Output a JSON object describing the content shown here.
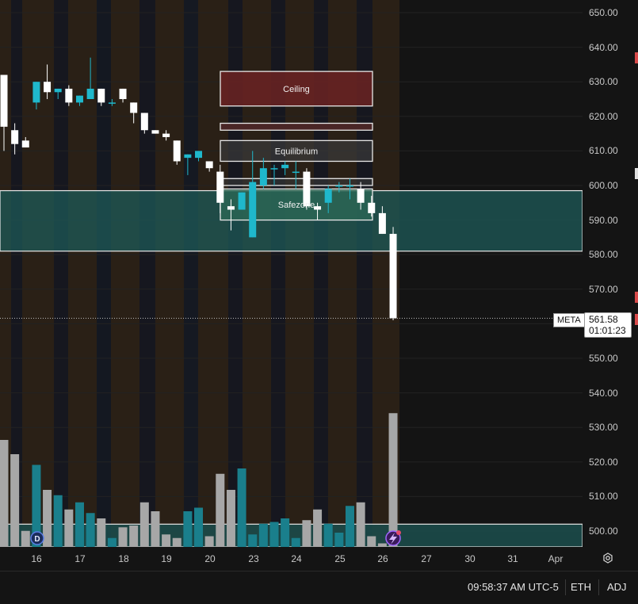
{
  "symbol": "META",
  "last_price": "561.58",
  "countdown": "01:01:23",
  "session_time": "09:58:37 AM UTC-5",
  "session": "ETH",
  "adjustment": "ADJ",
  "zones": {
    "ceiling": "Ceiling",
    "equilibrium": "Equilibrium",
    "safezone": "Safezone"
  },
  "badges": {
    "dividend": "D"
  },
  "colors": {
    "up": "#1fb8cc",
    "down": "#ffffff",
    "vol_up": "#1a7f8c",
    "vol_down": "#a7a7a7",
    "zone_teal": "#1d5a58",
    "ceiling": "#6b2323"
  },
  "chart_data": {
    "type": "candlestick",
    "price_axis": [
      "650.00",
      "640.00",
      "630.00",
      "620.00",
      "610.00",
      "600.00",
      "590.00",
      "580.00",
      "570.00",
      "560.00",
      "550.00",
      "540.00",
      "530.00",
      "520.00",
      "510.00",
      "500.00"
    ],
    "ylim": [
      495,
      652
    ],
    "time_axis": [
      "16",
      "17",
      "18",
      "19",
      "20",
      "23",
      "24",
      "25",
      "26",
      "27",
      "30",
      "31",
      "Apr"
    ],
    "candles": [
      {
        "o": 632,
        "h": 632,
        "l": 610,
        "c": 617
      },
      {
        "o": 616,
        "h": 618,
        "l": 609,
        "c": 612
      },
      {
        "o": 613,
        "h": 614,
        "l": 611,
        "c": 611
      },
      {
        "o": 624,
        "h": 630,
        "l": 622,
        "c": 630
      },
      {
        "o": 630,
        "h": 635,
        "l": 625,
        "c": 627
      },
      {
        "o": 627,
        "h": 628,
        "l": 625,
        "c": 628
      },
      {
        "o": 628,
        "h": 629,
        "l": 623,
        "c": 624
      },
      {
        "o": 624,
        "h": 626,
        "l": 623,
        "c": 626
      },
      {
        "o": 625,
        "h": 637,
        "l": 625,
        "c": 628
      },
      {
        "o": 628,
        "h": 628,
        "l": 623,
        "c": 624
      },
      {
        "o": 624,
        "h": 625,
        "l": 623,
        "c": 624
      },
      {
        "o": 628,
        "h": 628,
        "l": 624,
        "c": 625
      },
      {
        "o": 624,
        "h": 624,
        "l": 618,
        "c": 621
      },
      {
        "o": 621,
        "h": 621,
        "l": 615,
        "c": 616
      },
      {
        "o": 616,
        "h": 616,
        "l": 615,
        "c": 615
      },
      {
        "o": 615,
        "h": 616,
        "l": 613,
        "c": 614
      },
      {
        "o": 613,
        "h": 613,
        "l": 606,
        "c": 607
      },
      {
        "o": 608,
        "h": 609,
        "l": 603,
        "c": 609
      },
      {
        "o": 608,
        "h": 610,
        "l": 607,
        "c": 610
      },
      {
        "o": 607,
        "h": 607,
        "l": 604,
        "c": 605
      },
      {
        "o": 604,
        "h": 606,
        "l": 592,
        "c": 595
      },
      {
        "o": 594,
        "h": 596,
        "l": 587,
        "c": 593
      },
      {
        "o": 593,
        "h": 598,
        "l": 593,
        "c": 598
      },
      {
        "o": 585,
        "h": 610,
        "l": 585,
        "c": 601
      },
      {
        "o": 600,
        "h": 608,
        "l": 599,
        "c": 605
      },
      {
        "o": 605,
        "h": 606,
        "l": 600,
        "c": 605
      },
      {
        "o": 605,
        "h": 607,
        "l": 603,
        "c": 606
      },
      {
        "o": 604,
        "h": 607,
        "l": 599,
        "c": 604
      },
      {
        "o": 604,
        "h": 605,
        "l": 593,
        "c": 594
      },
      {
        "o": 594,
        "h": 595,
        "l": 590,
        "c": 593
      },
      {
        "o": 595,
        "h": 600,
        "l": 592,
        "c": 599
      },
      {
        "o": 600,
        "h": 601,
        "l": 598,
        "c": 600
      },
      {
        "o": 600,
        "h": 602,
        "l": 596,
        "c": 600
      },
      {
        "o": 599,
        "h": 601,
        "l": 593,
        "c": 595
      },
      {
        "o": 595,
        "h": 597,
        "l": 591,
        "c": 592
      },
      {
        "o": 592,
        "h": 594,
        "l": 586,
        "c": 586
      },
      {
        "o": 586,
        "h": 588,
        "l": 561,
        "c": 561.58
      }
    ],
    "volume": [
      0.6,
      0.52,
      0.09,
      0.46,
      0.32,
      0.29,
      0.21,
      0.25,
      0.19,
      0.16,
      0.05,
      0.11,
      0.12,
      0.25,
      0.2,
      0.07,
      0.05,
      0.2,
      0.22,
      0.06,
      0.41,
      0.32,
      0.44,
      0.07,
      0.13,
      0.14,
      0.16,
      0.05,
      0.15,
      0.21,
      0.13,
      0.08,
      0.23,
      0.25,
      0.06,
      0.02,
      0.75
    ]
  }
}
